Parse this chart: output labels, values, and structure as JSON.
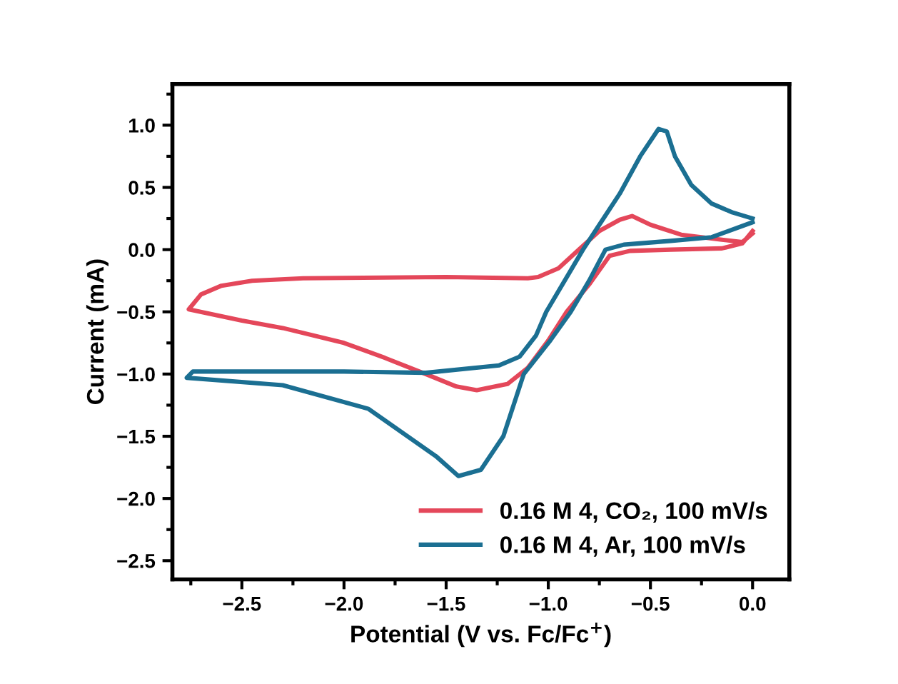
{
  "chart_data": {
    "type": "line",
    "xlabel": "Potential (V vs. Fc/Fc$^{+}$)",
    "ylabel": "Current (mA)",
    "xlim": [
      -2.84,
      0.18
    ],
    "ylim": [
      -2.65,
      1.33
    ],
    "xticks": [
      {
        "value": -2.5,
        "label": "−2.5"
      },
      {
        "value": -2,
        "label": "−2.0"
      },
      {
        "value": -1.5,
        "label": "−1.5"
      },
      {
        "value": -1,
        "label": "−1.0"
      },
      {
        "value": -0.5,
        "label": "−0.5"
      },
      {
        "value": 0,
        "label": "0.0"
      }
    ],
    "yticks": [
      {
        "value": -2.5,
        "label": "−2.5"
      },
      {
        "value": -2,
        "label": "−2.0"
      },
      {
        "value": -1.5,
        "label": "−1.5"
      },
      {
        "value": -1,
        "label": "−1.0"
      },
      {
        "value": -0.5,
        "label": "−0.5"
      },
      {
        "value": 0,
        "label": "0.0"
      },
      0.5,
      {
        "value": 1,
        "label": "1.0"
      }
    ],
    "grid": false,
    "legend": "bottom right",
    "marker": "none",
    "line_style": "solid",
    "series": [
      {
        "name": "0.16 M 4, CO₂, 100 mV/s",
        "color": "#e4475a",
        "x": [
          0,
          -0.05,
          -0.15,
          -0.4,
          -0.6,
          -0.7,
          -0.8,
          -0.91,
          -1.0,
          -1.1,
          -1.2,
          -1.35,
          -1.45,
          -1.6,
          -1.8,
          -2.0,
          -2.3,
          -2.5,
          -2.76,
          -2.7,
          -2.6,
          -2.45,
          -2.2,
          -1.5,
          -1.1,
          -1.05,
          -0.95,
          -0.85,
          -0.75,
          -0.65,
          -0.59,
          -0.5,
          -0.35,
          -0.15,
          -0.05,
          0
        ],
        "values": [
          0.15,
          0.05,
          0.01,
          0.0,
          -0.01,
          -0.05,
          -0.28,
          -0.5,
          -0.73,
          -0.95,
          -1.08,
          -1.13,
          -1.1,
          -1.0,
          -0.87,
          -0.75,
          -0.63,
          -0.57,
          -0.48,
          -0.36,
          -0.29,
          -0.25,
          -0.23,
          -0.22,
          -0.23,
          -0.22,
          -0.15,
          0.0,
          0.15,
          0.24,
          0.27,
          0.2,
          0.12,
          0.08,
          0.06,
          0.13
        ]
      },
      {
        "name": "0.16 M 4, Ar, 100 mV/s",
        "color": "#1b6f92",
        "x": [
          0,
          -0.2,
          -0.4,
          -0.63,
          -0.72,
          -0.8,
          -0.89,
          -0.99,
          -1.12,
          -1.22,
          -1.33,
          -1.44,
          -1.55,
          -1.88,
          -2.3,
          -2.77,
          -2.74,
          -2.5,
          -2.0,
          -1.6,
          -1.24,
          -1.14,
          -1.06,
          -1.01,
          -0.83,
          -0.75,
          -0.65,
          -0.55,
          -0.46,
          -0.42,
          -0.38,
          -0.3,
          -0.2,
          -0.1,
          0
        ],
        "values": [
          0.22,
          0.1,
          0.07,
          0.04,
          0.0,
          -0.25,
          -0.5,
          -0.73,
          -1.0,
          -1.5,
          -1.77,
          -1.82,
          -1.66,
          -1.28,
          -1.09,
          -1.03,
          -0.98,
          -0.98,
          -0.98,
          -0.99,
          -0.93,
          -0.86,
          -0.69,
          -0.5,
          0.0,
          0.2,
          0.45,
          0.75,
          0.97,
          0.95,
          0.75,
          0.52,
          0.37,
          0.3,
          0.25
        ]
      }
    ]
  }
}
